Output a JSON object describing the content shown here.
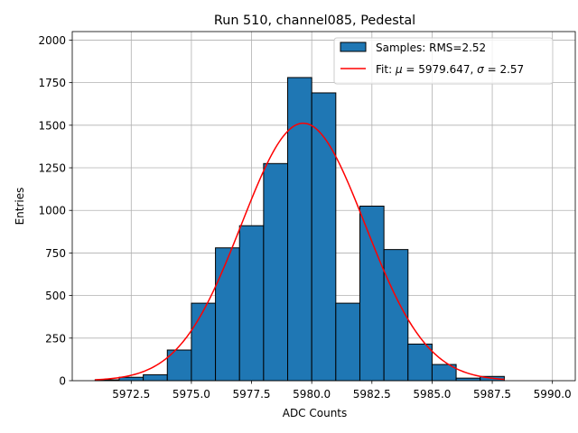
{
  "chart_data": {
    "type": "bar",
    "title": "Run 510, channel085, Pedestal",
    "xlabel": "ADC Counts",
    "ylabel": "Entries",
    "xlim": [
      5970.05,
      5990.95
    ],
    "ylim": [
      0,
      2050
    ],
    "grid": true,
    "legend_position": "top-right",
    "x_ticks": [
      5972.5,
      5975.0,
      5977.5,
      5980.0,
      5982.5,
      5985.0,
      5987.5,
      5990.0
    ],
    "x_tick_labels": [
      "5972.5",
      "5975.0",
      "5977.5",
      "5980.0",
      "5982.5",
      "5985.0",
      "5987.5",
      "5990.0"
    ],
    "y_ticks": [
      0,
      250,
      500,
      750,
      1000,
      1250,
      1500,
      1750,
      2000
    ],
    "y_tick_labels": [
      "0",
      "250",
      "500",
      "750",
      "1000",
      "1250",
      "1500",
      "1750",
      "2000"
    ],
    "histogram": {
      "name": "Samples: RMS=2.52",
      "color": "#1f77b4",
      "edge_color": "#000000",
      "bin_edges": [
        5971,
        5972,
        5973,
        5974,
        5975,
        5976,
        5977,
        5978,
        5979,
        5980,
        5981,
        5982,
        5983,
        5984,
        5985,
        5986,
        5987,
        5988,
        5989,
        5990
      ],
      "counts": [
        5,
        20,
        35,
        180,
        455,
        780,
        910,
        1275,
        1780,
        1690,
        455,
        1025,
        770,
        215,
        95,
        15,
        25,
        0,
        0
      ]
    },
    "fit": {
      "name_prefix": "Fit: ",
      "mu_symbol": "μ",
      "sigma_symbol": "σ",
      "mu": 5979.647,
      "sigma": 2.57,
      "amplitude": 1512,
      "x_range": [
        5971,
        5988
      ],
      "color": "#ff0000"
    },
    "legend": {
      "hist_label": "Samples: RMS=2.52",
      "fit_prefix": "Fit: ",
      "fit_mu": " = 5979.647, ",
      "fit_sigma": " = 2.57"
    }
  }
}
